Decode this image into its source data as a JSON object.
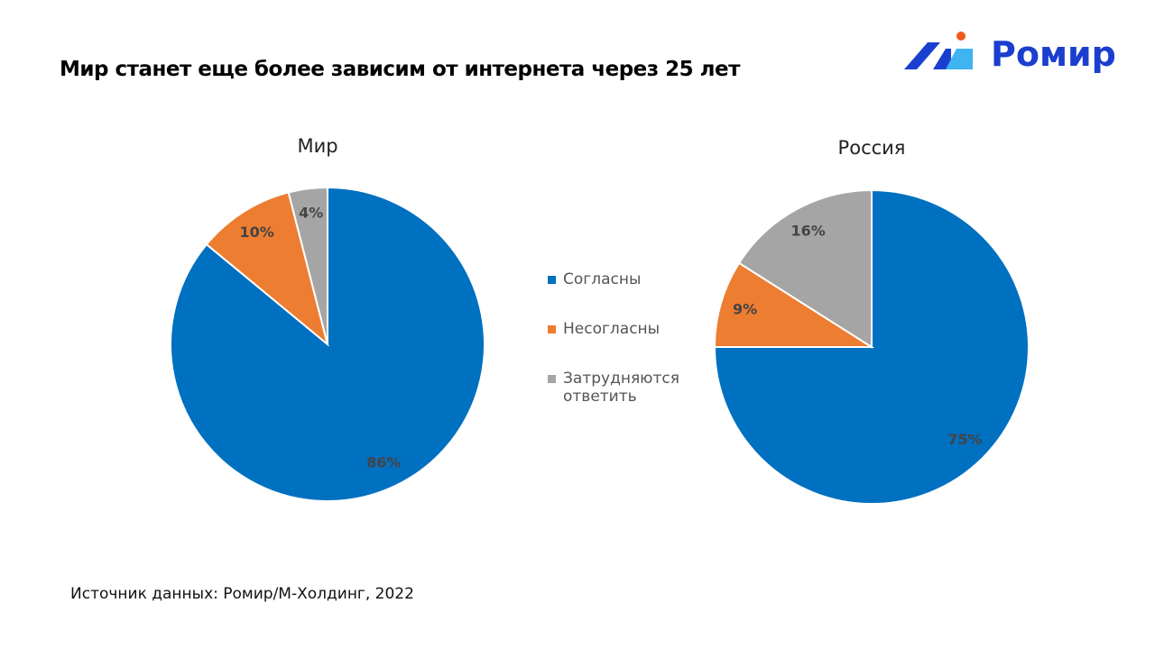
{
  "title": "Мир станет еще более зависим от интернета через 25 лет",
  "logo": {
    "text": "Ромир"
  },
  "source": "Источник данных: Ромир/М-Холдинг, 2022",
  "colors": {
    "agree": "#0070C0",
    "disagree": "#ED7D31",
    "unsure": "#A5A5A5"
  },
  "chart_data": [
    {
      "type": "pie",
      "title": "Мир",
      "categories": [
        "Согласны",
        "Несогласны",
        "Затрудняются ответить"
      ],
      "values": [
        86,
        10,
        4
      ],
      "labels": [
        "86%",
        "10%",
        "4%"
      ]
    },
    {
      "type": "pie",
      "title": "Россия",
      "categories": [
        "Согласны",
        "Несогласны",
        "Затрудняются ответить"
      ],
      "values": [
        75,
        9,
        16
      ],
      "labels": [
        "75%",
        "9%",
        "16%"
      ]
    }
  ],
  "legend": [
    {
      "label": "Согласны"
    },
    {
      "label": "Несогласны"
    },
    {
      "label_line1": "Затрудняются",
      "label_line2": "ответить"
    }
  ]
}
